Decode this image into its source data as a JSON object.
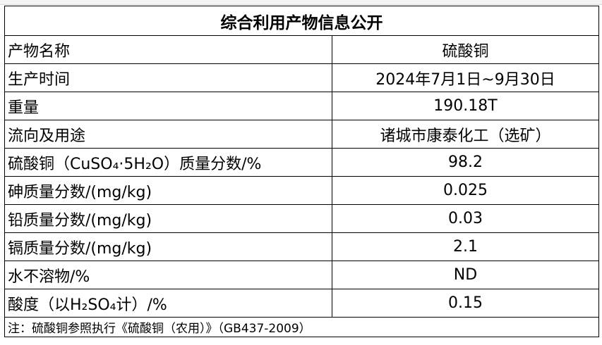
{
  "title": "综合利用产物信息公开",
  "rows": [
    [
      "产物名称",
      "硫酸铜"
    ],
    [
      "生产时间",
      "2024年7月1日~9月30日"
    ],
    [
      "重量",
      "190.18T"
    ],
    [
      "流向及用途",
      "诸城市康泰化工（选矿）"
    ],
    [
      "硫酸铜（CuSO₄·5H₂O）质量分数/%",
      "98.2"
    ],
    [
      "砷质量分数/(mg/kg)",
      "0.025"
    ],
    [
      "铅质量分数/(mg/kg)",
      "0.03"
    ],
    [
      "镉质量分数/(mg/kg)",
      "2.1"
    ],
    [
      "水不溶物/%",
      "ND"
    ],
    [
      "酸度（以H₂SO₄计）/%",
      "0.15"
    ]
  ],
  "note": "注：硫酸铜参照执行《硫酸铜（农用）》（GB437-2009）"
}
